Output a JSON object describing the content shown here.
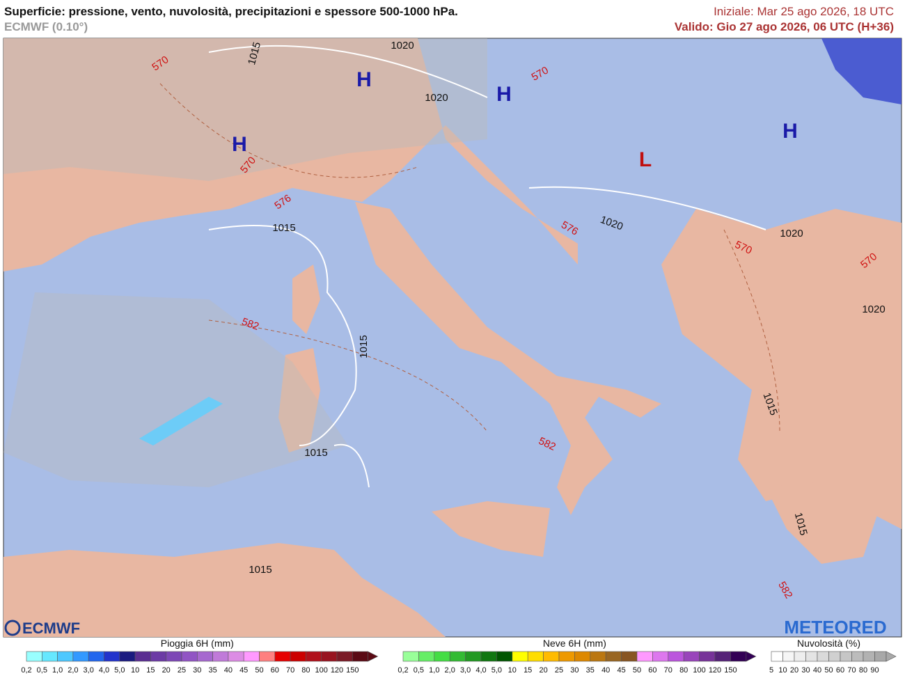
{
  "header": {
    "title": "Superficie: pressione, vento, nuvolosità, precipitazioni e spessore 500-1000 hPa.",
    "model": "ECMWF (0.10°)",
    "init": "Iniziale: Mar 25 ago 2026, 18 UTC",
    "valid": "Valido: Gio 27 ago 2026, 06 UTC (H+36)"
  },
  "map": {
    "pressure_centers": [
      "H",
      "H",
      "H",
      "H",
      "L"
    ],
    "isobar_labels": [
      "1015",
      "1020",
      "1020",
      "1015",
      "1020",
      "1020",
      "1020",
      "1015",
      "1015",
      "1015",
      "1015",
      "1015"
    ],
    "thickness_labels": [
      "570",
      "570",
      "570",
      "576",
      "576",
      "570",
      "570",
      "582",
      "582",
      "582"
    ]
  },
  "logos": {
    "left": "ECMWF",
    "right": "METEORED"
  },
  "legends": [
    {
      "title": "Pioggia 6H (mm)",
      "labels": [
        "0,2",
        "0,5",
        "1,0",
        "2,0",
        "3,0",
        "4,0",
        "5,0",
        "10",
        "15",
        "20",
        "25",
        "30",
        "35",
        "40",
        "45",
        "50",
        "60",
        "70",
        "80",
        "100",
        "120",
        "150"
      ],
      "colors": [
        "#99ffff",
        "#66e8ff",
        "#4dc8ff",
        "#3399ff",
        "#2266ee",
        "#2233cc",
        "#1a1a80",
        "#5a2d91",
        "#6c3aa5",
        "#7d47b6",
        "#9154c4",
        "#a668cf",
        "#c07ad9",
        "#dc8ce4",
        "#ff99ff",
        "#ff8080",
        "#e60000",
        "#cc0000",
        "#b0101a",
        "#981420",
        "#7a1a26",
        "#5a0a14"
      ]
    },
    {
      "title": "Neve 6H (mm)",
      "labels": [
        "0,2",
        "0,5",
        "1,0",
        "2,0",
        "3,0",
        "4,0",
        "5,0",
        "10",
        "15",
        "20",
        "25",
        "30",
        "35",
        "40",
        "45",
        "50",
        "60",
        "70",
        "80",
        "100",
        "120",
        "150"
      ],
      "colors": [
        "#99ff99",
        "#66ee66",
        "#44dd44",
        "#33bb33",
        "#229922",
        "#117711",
        "#005500",
        "#ffff00",
        "#ffdd00",
        "#ffbb00",
        "#ee9900",
        "#dd8800",
        "#bb7711",
        "#996622",
        "#885522",
        "#ff99ff",
        "#dd77ee",
        "#bb55dd",
        "#9944bb",
        "#773399",
        "#552277",
        "#330055"
      ]
    },
    {
      "title": "Nuvolosità (%)",
      "labels": [
        "5",
        "10",
        "20",
        "30",
        "40",
        "50",
        "60",
        "70",
        "80",
        "90"
      ],
      "colors": [
        "#ffffff",
        "#f6f6f6",
        "#eeeeee",
        "#e4e4e4",
        "#dadada",
        "#d0d0d0",
        "#c6c6c6",
        "#bcbcbc",
        "#b2b2b2",
        "#a8a8a8"
      ]
    }
  ]
}
